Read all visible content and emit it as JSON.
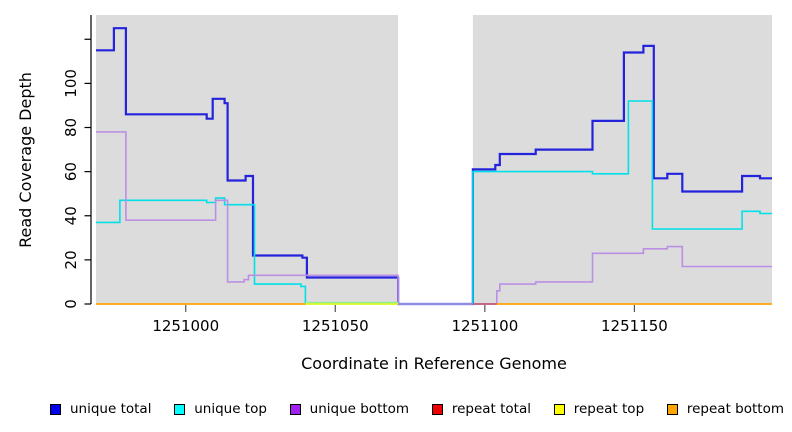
{
  "figure": {
    "background_color": "#FFFFFF",
    "plot_background_color": "#DCDCDC",
    "axis_color": "#000000",
    "masked_region_color": "#FFFFFF"
  },
  "chart_data": {
    "type": "line",
    "step_mode": "after",
    "title": "",
    "xlabel": "Coordinate in Reference Genome",
    "ylabel": "Read Coverage Depth",
    "xlim": [
      1250970,
      1251196
    ],
    "ylim": [
      0,
      131
    ],
    "grid": false,
    "legend_position": "bottom",
    "x_ticks": [
      1251000,
      1251050,
      1251100,
      1251150
    ],
    "x_tick_labels": [
      "1251000",
      "1251050",
      "1251100",
      "1251150"
    ],
    "y_ticks": [
      0,
      20,
      40,
      60,
      80,
      100,
      120
    ],
    "y_tick_labels": [
      "0",
      "20",
      "40",
      "60",
      "80",
      "100",
      ""
    ],
    "masked_region": {
      "from": 1251071,
      "to": 1251096,
      "note": "white vertical band, no shading"
    },
    "series": [
      {
        "id": "unique_total",
        "name": "unique total",
        "line_color": "#2323DC",
        "legend_color": "#0000EE",
        "width": 2.2,
        "segments": [
          [
            [
              1250970,
              115
            ],
            [
              1250976,
              125
            ],
            [
              1250980,
              86
            ],
            [
              1251007,
              84
            ],
            [
              1251009,
              93
            ],
            [
              1251013,
              91
            ],
            [
              1251014,
              56
            ],
            [
              1251020,
              58
            ],
            [
              1251022.5,
              22
            ],
            [
              1251039,
              21
            ],
            [
              1251040.5,
              12
            ],
            [
              1251071,
              0
            ],
            [
              1251096,
              61
            ],
            [
              1251103.5,
              63
            ],
            [
              1251105,
              68
            ],
            [
              1251117,
              70
            ],
            [
              1251136,
              83
            ],
            [
              1251146.5,
              114
            ],
            [
              1251153,
              117
            ],
            [
              1251156.5,
              57
            ],
            [
              1251161,
              59
            ],
            [
              1251166,
              51
            ],
            [
              1251186,
              58
            ],
            [
              1251192,
              57
            ],
            [
              1251196,
              57
            ]
          ]
        ]
      },
      {
        "id": "unique_top",
        "name": "unique top",
        "line_color": "#00E0E8",
        "legend_color": "#00FFFF",
        "width": 1.6,
        "segments": [
          [
            [
              1250970,
              37
            ],
            [
              1250978,
              47
            ],
            [
              1251007,
              46
            ],
            [
              1251010,
              48
            ],
            [
              1251013,
              45
            ],
            [
              1251023,
              9
            ],
            [
              1251038.5,
              8
            ],
            [
              1251040,
              0
            ],
            [
              1251096,
              60
            ],
            [
              1251136,
              59
            ],
            [
              1251148,
              92
            ],
            [
              1251156,
              34
            ],
            [
              1251186,
              42
            ],
            [
              1251192,
              41
            ],
            [
              1251196,
              41
            ]
          ]
        ]
      },
      {
        "id": "unique_bottom",
        "name": "unique bottom",
        "line_color": "#BB90E4",
        "legend_color": "#A020F0",
        "width": 1.6,
        "segments": [
          [
            [
              1250970,
              78
            ],
            [
              1250980,
              38
            ],
            [
              1251010,
              47
            ],
            [
              1251014,
              10
            ],
            [
              1251019.5,
              11
            ],
            [
              1251021,
              13
            ],
            [
              1251071,
              0
            ],
            [
              1251104,
              6
            ],
            [
              1251105,
              9
            ],
            [
              1251117,
              10
            ],
            [
              1251136,
              23
            ],
            [
              1251153,
              25
            ],
            [
              1251161,
              26
            ],
            [
              1251166,
              17
            ],
            [
              1251196,
              17
            ]
          ]
        ]
      },
      {
        "id": "repeat_total",
        "name": "repeat total",
        "line_color": "#BE4A64",
        "legend_color": "#EE0000",
        "width": 1.6,
        "segments": [
          [
            [
              1251096,
              0
            ],
            [
              1251104,
              0
            ]
          ]
        ]
      },
      {
        "id": "repeat_top",
        "name": "repeat top",
        "line_color": "#FFFF00",
        "legend_color": "#FFFF00",
        "width": 1.6,
        "segments": [
          [
            [
              1251040,
              0
            ],
            [
              1251071,
              0
            ]
          ]
        ]
      },
      {
        "id": "repeat_bottom",
        "name": "repeat bottom",
        "line_color": "#FFA500",
        "legend_color": "#FFA500",
        "width": 1.8,
        "segments": [
          [
            [
              1250970,
              0
            ],
            [
              1251040,
              0
            ]
          ],
          [
            [
              1251104,
              0
            ],
            [
              1251196,
              0
            ]
          ]
        ]
      }
    ],
    "overlay_segment": {
      "color": "#90EE90",
      "from": 1251040,
      "to": 1251071,
      "value": 0,
      "note": "pale green overlap line riding just above the zero baseline"
    }
  },
  "legend": {
    "items": [
      {
        "label": "unique total",
        "color": "#0000EE"
      },
      {
        "label": "unique top",
        "color": "#00FFFF"
      },
      {
        "label": "unique bottom",
        "color": "#A020F0"
      },
      {
        "label": "repeat total",
        "color": "#EE0000"
      },
      {
        "label": "repeat top",
        "color": "#FFFF00"
      },
      {
        "label": "repeat bottom",
        "color": "#FFA500"
      }
    ]
  }
}
